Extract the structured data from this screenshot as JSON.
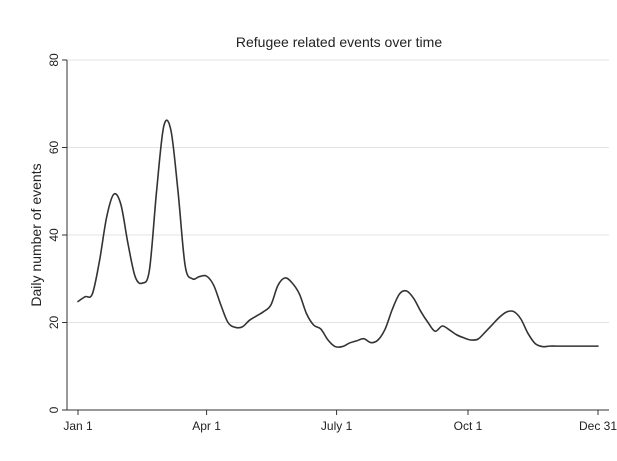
{
  "chart_data": {
    "type": "line",
    "title": "Refugee related events over time",
    "xlabel": "",
    "ylabel": "Daily number of events",
    "x_ticks": [
      {
        "label": "Jan 1",
        "day": 0
      },
      {
        "label": "Apr 1",
        "day": 90
      },
      {
        "label": "July 1",
        "day": 181
      },
      {
        "label": "Oct 1",
        "day": 273
      },
      {
        "label": "Dec 31",
        "day": 364
      }
    ],
    "y_ticks": [
      0,
      20,
      40,
      60,
      80
    ],
    "xlim": [
      0,
      364
    ],
    "ylim": [
      0,
      80
    ],
    "grid": true,
    "colors": {
      "line": "#333333",
      "grid": "#e3e3e3",
      "axis": "#333333",
      "background": "#ffffff"
    },
    "series": [
      {
        "x": [
          0,
          5,
          10,
          15,
          20,
          25,
          30,
          35,
          40,
          45,
          50,
          55,
          60,
          65,
          70,
          75,
          80,
          85,
          90,
          95,
          100,
          105,
          110,
          115,
          120,
          125,
          130,
          135,
          140,
          145,
          150,
          155,
          160,
          165,
          170,
          175,
          180,
          185,
          190,
          195,
          200,
          205,
          210,
          215,
          220,
          225,
          230,
          235,
          240,
          245,
          250,
          255,
          260,
          265,
          270,
          275,
          280,
          285,
          290,
          295,
          300,
          305,
          310,
          315,
          320,
          325,
          330,
          335,
          340,
          345,
          350,
          355,
          360,
          364
        ],
        "values": [
          24.8,
          25.9,
          26.5,
          34,
          44,
          49.3,
          47,
          38,
          30.5,
          29,
          32,
          50,
          64.8,
          64,
          50,
          33,
          30,
          30.5,
          30.6,
          28.5,
          24,
          20,
          18.9,
          19,
          20.5,
          21.5,
          22.5,
          24,
          28.5,
          30.2,
          29,
          26.5,
          22,
          19.4,
          18.5,
          16,
          14.5,
          14.5,
          15.3,
          15.8,
          16.3,
          15.4,
          16,
          18.5,
          23,
          26.5,
          27.2,
          25.5,
          22.5,
          20,
          18,
          19.2,
          18.3,
          17.2,
          16.5,
          16,
          16.2,
          17.8,
          19.5,
          21.2,
          22.4,
          22.5,
          20.8,
          17.5,
          15.2,
          14.5,
          14.6,
          14.6,
          14.6,
          14.6,
          14.6,
          14.6,
          14.6,
          14.6
        ]
      }
    ]
  }
}
